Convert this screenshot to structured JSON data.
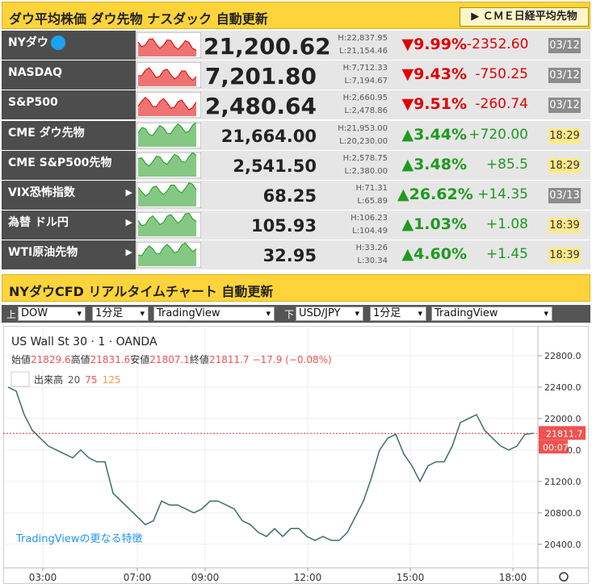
{
  "header": {
    "title": "ダウ平均株価 ダウ先物 ナスダック 自動更新",
    "button": "ＣＭＥ日経平均先物"
  },
  "quotes": [
    {
      "name": "NYダウ",
      "price": "21,200.62",
      "high": "H:22,837.95",
      "low": "L:21,154.46",
      "change_pct": "▼9.99%",
      "change": "-2352.60",
      "time": "03/12",
      "color": "#e00000",
      "time_bg": "#8c8c8c",
      "time_fg": "#ffffff"
    },
    {
      "name": "NASDAQ",
      "price": "7,201.80",
      "high": "H:7,712.33",
      "low": "L:7,194.67",
      "change_pct": "▼9.43%",
      "change": "-750.25",
      "time": "03/12",
      "color": "#e00000",
      "time_bg": "#8c8c8c",
      "time_fg": "#ffffff"
    },
    {
      "name": "S&P500",
      "price": "2,480.64",
      "high": "H:2,660.95",
      "low": "L:2,478.86",
      "change_pct": "▼9.51%",
      "change": "-260.74",
      "time": "03/12",
      "color": "#e00000",
      "time_bg": "#8c8c8c",
      "time_fg": "#ffffff"
    },
    {
      "name": "CME ダウ先物",
      "price": "21,664.00",
      "high": "H:21,953.00",
      "low": "L:20,230.00",
      "change_pct": "▲3.44%",
      "change": "+720.00",
      "time": "18:29",
      "color": "#1f9a1f",
      "time_bg": "#ffe98a",
      "time_fg": "#333333"
    },
    {
      "name": "CME S&P500先物",
      "price": "2,541.50",
      "high": "H:2,578.75",
      "low": "L:2,380.00",
      "change_pct": "▲3.48%",
      "change": "+85.5",
      "time": "18:29",
      "color": "#1f9a1f",
      "time_bg": "#ffe98a",
      "time_fg": "#333333"
    },
    {
      "name": "VIX恐怖指数",
      "price": "68.25",
      "high": "H:71.31",
      "low": "L:65.89",
      "change_pct": "▲26.62%",
      "change": "+14.35",
      "time": "03/13",
      "color": "#1f9a1f",
      "time_bg": "#8c8c8c",
      "time_fg": "#ffffff"
    },
    {
      "name": "為替 ドル円",
      "price": "105.93",
      "high": "H:106.23",
      "low": "L:104.49",
      "change_pct": "▲1.03%",
      "change": "+1.08",
      "time": "18:39",
      "color": "#1f9a1f",
      "time_bg": "#ffe98a",
      "time_fg": "#333333"
    },
    {
      "name": "WTI原油先物",
      "price": "32.95",
      "high": "H:33.26",
      "low": "L:30.34",
      "change_pct": "▲4.60%",
      "change": "+1.45",
      "time": "18:39",
      "color": "#1f9a1f",
      "time_bg": "#ffe98a",
      "time_fg": "#333333"
    }
  ],
  "section": {
    "title": "NYダウCFD リアルタイムチャート 自動更新"
  },
  "controls": {
    "upper_label": "上",
    "upper": [
      "DOW",
      "1分足",
      "TradingView"
    ],
    "lower_label": "下",
    "lower": [
      "USD/JPY",
      "1分足",
      "TradingView"
    ]
  },
  "chart_data": {
    "type": "line",
    "title": "US Wall St 30 · 1 · OANDA",
    "legend": {
      "open_label": "始値",
      "open": 21829.6,
      "high_label": "高値",
      "high": 21831.6,
      "low_label": "安値",
      "low": 21807.1,
      "close_label": "終値",
      "close": 21811.7,
      "change": "−17.9 (−0.08%)"
    },
    "volume_label": "出来高",
    "volume_periods": [
      20,
      75,
      125
    ],
    "promo": "TradingViewの更なる特徴",
    "countdown": "00:07",
    "color": "#3d6e6a",
    "values": [
      22400,
      22350,
      22050,
      21850,
      21750,
      21650,
      21600,
      21550,
      21500,
      21600,
      21500,
      21450,
      21450,
      21050,
      20950,
      20850,
      20750,
      20650,
      20700,
      20950,
      20900,
      20900,
      20850,
      20800,
      20850,
      20950,
      20950,
      20900,
      20850,
      20700,
      20650,
      20550,
      20500,
      20600,
      20500,
      20600,
      20600,
      20500,
      20450,
      20500,
      20450,
      20450,
      20550,
      20750,
      20950,
      21250,
      21600,
      21750,
      21800,
      21550,
      21400,
      21200,
      21400,
      21450,
      21450,
      21650,
      21950,
      22000,
      22050,
      21850,
      21750,
      21650,
      21600,
      21650,
      21800,
      21811.7
    ],
    "xlim": [
      -0.6,
      65.5
    ],
    "xticks": [
      {
        "value": 4.3,
        "label": "03:00"
      },
      {
        "value": 16,
        "label": "07:00"
      },
      {
        "value": 24.4,
        "label": "09:00"
      },
      {
        "value": 37.1,
        "label": "12:00"
      },
      {
        "value": 49.8,
        "label": "15:00"
      },
      {
        "value": 62.5,
        "label": "18:00"
      }
    ],
    "ylim": [
      20100,
      23180
    ],
    "yticks": [
      {
        "value": 20400,
        "label": "20400.0"
      },
      {
        "value": 20800,
        "label": "20800.0"
      },
      {
        "value": 21200,
        "label": "21200.0"
      },
      {
        "value": 21600,
        "label": "21600.0"
      },
      {
        "value": 22000,
        "label": "22000.0"
      },
      {
        "value": 22400,
        "label": "22400.0"
      },
      {
        "value": 22800,
        "label": "22800.0"
      }
    ],
    "grid": true
  }
}
